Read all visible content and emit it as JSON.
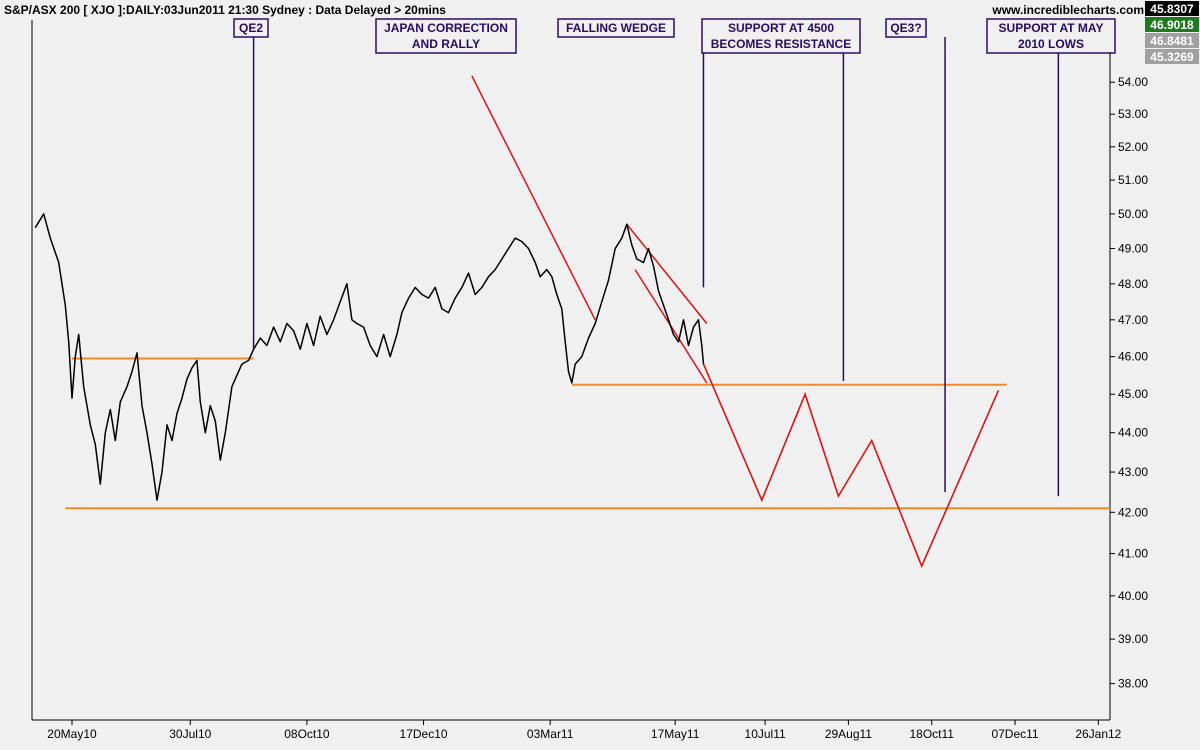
{
  "header": {
    "title": "S&P/ASX 200 [ XJO ]:DAILY:03Jun2011 21:30 Sydney : Data Delayed > 20mins",
    "site": "www.incrediblecharts.com"
  },
  "value_boxes": [
    {
      "label": "45.8307",
      "bg": "#000000",
      "fg": "#ffffff"
    },
    {
      "label": "46.9018",
      "bg": "#1f7a1f",
      "fg": "#ffffff"
    },
    {
      "label": "46.8481",
      "bg": "#a0a0a0",
      "fg": "#ffffff"
    },
    {
      "label": "45.3269",
      "bg": "#a0a0a0",
      "fg": "#ffffff"
    }
  ],
  "colors": {
    "price": "#000000",
    "projection": "#e01010",
    "support": "#f08a24",
    "annotation": "#2a0a66",
    "plot_bg": "#f0f0f0"
  },
  "chart_data": {
    "type": "line",
    "title": "S&P/ASX 200 [ XJO ]:DAILY:03Jun2011 21:30 Sydney : Data Delayed > 20mins",
    "xlabel": "",
    "ylabel": "",
    "ylim": [
      37.2,
      56.0
    ],
    "xlim": [
      "2010-04-26",
      "2012-02-02"
    ],
    "y_scale": "log",
    "y_ticks": [
      "38.00",
      "39.00",
      "40.00",
      "41.00",
      "42.00",
      "43.00",
      "44.00",
      "45.00",
      "46.00",
      "47.00",
      "48.00",
      "49.00",
      "50.00",
      "51.00",
      "52.00",
      "53.00",
      "54.00"
    ],
    "x_ticks": [
      {
        "label": "20May10",
        "date": "2010-05-20"
      },
      {
        "label": "30Jul10",
        "date": "2010-07-30"
      },
      {
        "label": "08Oct10",
        "date": "2010-10-08"
      },
      {
        "label": "17Dec10",
        "date": "2010-12-17"
      },
      {
        "label": "03Mar11",
        "date": "2011-03-03"
      },
      {
        "label": "17May11",
        "date": "2011-05-17"
      },
      {
        "label": "10Jul11",
        "date": "2011-07-10"
      },
      {
        "label": "29Aug11",
        "date": "2011-08-29"
      },
      {
        "label": "18Oct11",
        "date": "2011-10-18"
      },
      {
        "label": "07Dec11",
        "date": "2011-12-07"
      },
      {
        "label": "26Jan12",
        "date": "2012-01-26"
      }
    ],
    "grid": false,
    "series": [
      {
        "points": [
          [
            "2010-04-28",
            49.6
          ],
          [
            "2010-05-03",
            50.0
          ],
          [
            "2010-05-07",
            49.3
          ],
          [
            "2010-05-12",
            48.6
          ],
          [
            "2010-05-16",
            47.4
          ],
          [
            "2010-05-18",
            46.4
          ],
          [
            "2010-05-20",
            44.9
          ],
          [
            "2010-05-22",
            46.0
          ],
          [
            "2010-05-24",
            46.6
          ],
          [
            "2010-05-27",
            45.2
          ],
          [
            "2010-05-31",
            44.2
          ],
          [
            "2010-06-03",
            43.7
          ],
          [
            "2010-06-06",
            42.7
          ],
          [
            "2010-06-09",
            44.0
          ],
          [
            "2010-06-12",
            44.6
          ],
          [
            "2010-06-15",
            43.8
          ],
          [
            "2010-06-18",
            44.8
          ],
          [
            "2010-06-22",
            45.2
          ],
          [
            "2010-06-25",
            45.6
          ],
          [
            "2010-06-28",
            46.1
          ],
          [
            "2010-07-01",
            44.7
          ],
          [
            "2010-07-04",
            44.0
          ],
          [
            "2010-07-07",
            43.2
          ],
          [
            "2010-07-10",
            42.3
          ],
          [
            "2010-07-13",
            43.0
          ],
          [
            "2010-07-16",
            44.2
          ],
          [
            "2010-07-19",
            43.8
          ],
          [
            "2010-07-22",
            44.5
          ],
          [
            "2010-07-25",
            44.9
          ],
          [
            "2010-07-28",
            45.4
          ],
          [
            "2010-07-31",
            45.7
          ],
          [
            "2010-08-03",
            45.9
          ],
          [
            "2010-08-05",
            44.8
          ],
          [
            "2010-08-08",
            44.0
          ],
          [
            "2010-08-11",
            44.7
          ],
          [
            "2010-08-14",
            44.3
          ],
          [
            "2010-08-17",
            43.3
          ],
          [
            "2010-08-20",
            44.0
          ],
          [
            "2010-08-24",
            45.2
          ],
          [
            "2010-08-27",
            45.5
          ],
          [
            "2010-08-30",
            45.8
          ],
          [
            "2010-09-03",
            45.9
          ],
          [
            "2010-09-06",
            46.2
          ],
          [
            "2010-09-10",
            46.5
          ],
          [
            "2010-09-14",
            46.3
          ],
          [
            "2010-09-18",
            46.8
          ],
          [
            "2010-09-22",
            46.4
          ],
          [
            "2010-09-26",
            46.9
          ],
          [
            "2010-09-30",
            46.7
          ],
          [
            "2010-10-04",
            46.2
          ],
          [
            "2010-10-08",
            46.9
          ],
          [
            "2010-10-12",
            46.3
          ],
          [
            "2010-10-16",
            47.1
          ],
          [
            "2010-10-20",
            46.6
          ],
          [
            "2010-10-24",
            47.0
          ],
          [
            "2010-10-28",
            47.5
          ],
          [
            "2010-11-01",
            48.0
          ],
          [
            "2010-11-04",
            47.0
          ],
          [
            "2010-11-07",
            46.9
          ],
          [
            "2010-11-11",
            46.8
          ],
          [
            "2010-11-15",
            46.3
          ],
          [
            "2010-11-19",
            46.0
          ],
          [
            "2010-11-23",
            46.6
          ],
          [
            "2010-11-27",
            46.0
          ],
          [
            "2010-12-01",
            46.6
          ],
          [
            "2010-12-04",
            47.2
          ],
          [
            "2010-12-08",
            47.6
          ],
          [
            "2010-12-12",
            47.9
          ],
          [
            "2010-12-16",
            47.7
          ],
          [
            "2010-12-20",
            47.6
          ],
          [
            "2010-12-24",
            47.9
          ],
          [
            "2010-12-28",
            47.3
          ],
          [
            "2011-01-01",
            47.2
          ],
          [
            "2011-01-05",
            47.6
          ],
          [
            "2011-01-09",
            47.9
          ],
          [
            "2011-01-13",
            48.3
          ],
          [
            "2011-01-17",
            47.7
          ],
          [
            "2011-01-21",
            47.9
          ],
          [
            "2011-01-25",
            48.2
          ],
          [
            "2011-01-29",
            48.4
          ],
          [
            "2011-02-02",
            48.7
          ],
          [
            "2011-02-06",
            49.0
          ],
          [
            "2011-02-10",
            49.3
          ],
          [
            "2011-02-14",
            49.2
          ],
          [
            "2011-02-18",
            49.0
          ],
          [
            "2011-02-22",
            48.6
          ],
          [
            "2011-02-25",
            48.2
          ],
          [
            "2011-03-01",
            48.4
          ],
          [
            "2011-03-04",
            48.2
          ],
          [
            "2011-03-07",
            47.7
          ],
          [
            "2011-03-10",
            47.3
          ],
          [
            "2011-03-12",
            46.4
          ],
          [
            "2011-03-14",
            45.6
          ],
          [
            "2011-03-16",
            45.3
          ],
          [
            "2011-03-18",
            45.8
          ],
          [
            "2011-03-22",
            46.0
          ],
          [
            "2011-03-26",
            46.5
          ],
          [
            "2011-03-30",
            46.9
          ],
          [
            "2011-04-03",
            47.5
          ],
          [
            "2011-04-07",
            48.1
          ],
          [
            "2011-04-11",
            49.0
          ],
          [
            "2011-04-15",
            49.3
          ],
          [
            "2011-04-18",
            49.7
          ],
          [
            "2011-04-21",
            49.1
          ],
          [
            "2011-04-24",
            48.7
          ],
          [
            "2011-04-28",
            48.6
          ],
          [
            "2011-05-01",
            49.0
          ],
          [
            "2011-05-04",
            48.5
          ],
          [
            "2011-05-07",
            47.8
          ],
          [
            "2011-05-10",
            47.4
          ],
          [
            "2011-05-13",
            47.0
          ],
          [
            "2011-05-16",
            46.6
          ],
          [
            "2011-05-19",
            46.4
          ],
          [
            "2011-05-22",
            47.0
          ],
          [
            "2011-05-25",
            46.3
          ],
          [
            "2011-05-28",
            46.8
          ],
          [
            "2011-05-31",
            47.0
          ],
          [
            "2011-06-02",
            46.3
          ],
          [
            "2011-06-03",
            45.8
          ]
        ]
      }
    ],
    "support_lines": [
      {
        "y": 42.1,
        "x_start": "2010-05-16",
        "x_end": "2012-02-02"
      },
      {
        "y": 45.95,
        "x_start": "2010-05-20",
        "x_end": "2010-09-06"
      },
      {
        "y": 45.25,
        "x_start": "2011-03-16",
        "x_end": "2011-12-02"
      }
    ],
    "trend_lines": [
      {
        "from": [
          "2011-01-15",
          54.2
        ],
        "to": [
          "2011-03-30",
          47.0
        ]
      },
      {
        "from": [
          "2011-04-18",
          49.7
        ],
        "to": [
          "2011-06-05",
          46.9
        ]
      },
      {
        "from": [
          "2011-04-23",
          48.4
        ],
        "to": [
          "2011-06-05",
          45.3
        ]
      }
    ],
    "projection": [
      [
        "2011-06-03",
        45.8
      ],
      [
        "2011-07-08",
        42.3
      ],
      [
        "2011-08-03",
        45.0
      ],
      [
        "2011-08-23",
        42.4
      ],
      [
        "2011-09-12",
        43.8
      ],
      [
        "2011-10-12",
        40.7
      ],
      [
        "2011-11-27",
        45.1
      ]
    ],
    "annotations": [
      {
        "lines": [
          "QE2"
        ],
        "x": "2010-09-06",
        "pointer_to": 46.2
      },
      {
        "lines": [
          "JAPAN CORRECTION",
          "AND RALLY"
        ],
        "x": null,
        "pointer_to": null
      },
      {
        "lines": [
          "FALLING WEDGE"
        ],
        "x": "2011-06-03",
        "pointer_to": 47.9
      },
      {
        "lines": [
          "SUPPORT AT 4500",
          "BECOMES RESISTANCE"
        ],
        "x": "2011-08-26",
        "pointer_to": 45.35
      },
      {
        "lines": [
          "QE3?"
        ],
        "x": "2011-10-26",
        "pointer_to": 42.5
      },
      {
        "lines": [
          "SUPPORT AT MAY",
          "2010 LOWS"
        ],
        "x": "2012-01-02",
        "pointer_to": 42.4
      }
    ]
  }
}
